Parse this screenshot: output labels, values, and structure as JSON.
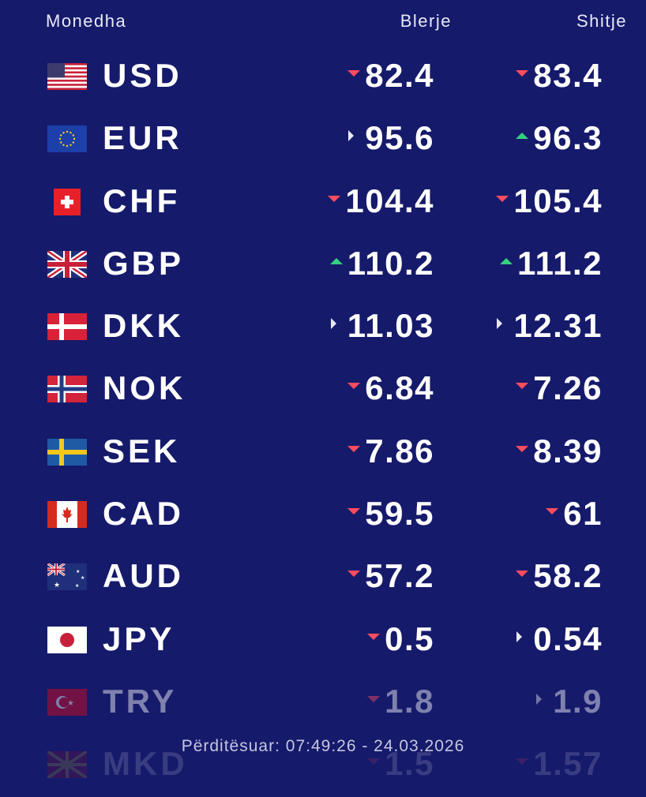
{
  "header": {
    "currency": "Monedha",
    "buy": "Blerje",
    "sell": "Shitje"
  },
  "rates": [
    {
      "code": "USD",
      "flag": "us-flag-icon",
      "buy": "82.4",
      "buy_trend": "down",
      "sell": "83.4",
      "sell_trend": "down"
    },
    {
      "code": "EUR",
      "flag": "eu-flag-icon",
      "buy": "95.6",
      "buy_trend": "flat",
      "sell": "96.3",
      "sell_trend": "up"
    },
    {
      "code": "CHF",
      "flag": "ch-flag-icon",
      "buy": "104.4",
      "buy_trend": "down",
      "sell": "105.4",
      "sell_trend": "down"
    },
    {
      "code": "GBP",
      "flag": "gb-flag-icon",
      "buy": "110.2",
      "buy_trend": "up",
      "sell": "111.2",
      "sell_trend": "up"
    },
    {
      "code": "DKK",
      "flag": "dk-flag-icon",
      "buy": "11.03",
      "buy_trend": "flat",
      "sell": "12.31",
      "sell_trend": "flat"
    },
    {
      "code": "NOK",
      "flag": "no-flag-icon",
      "buy": "6.84",
      "buy_trend": "down",
      "sell": "7.26",
      "sell_trend": "down"
    },
    {
      "code": "SEK",
      "flag": "se-flag-icon",
      "buy": "7.86",
      "buy_trend": "down",
      "sell": "8.39",
      "sell_trend": "down"
    },
    {
      "code": "CAD",
      "flag": "ca-flag-icon",
      "buy": "59.5",
      "buy_trend": "down",
      "sell": "61",
      "sell_trend": "down"
    },
    {
      "code": "AUD",
      "flag": "au-flag-icon",
      "buy": "57.2",
      "buy_trend": "down",
      "sell": "58.2",
      "sell_trend": "down"
    },
    {
      "code": "JPY",
      "flag": "jp-flag-icon",
      "buy": "0.5",
      "buy_trend": "down",
      "sell": "0.54",
      "sell_trend": "flat"
    },
    {
      "code": "TRY",
      "flag": "tr-flag-icon",
      "buy": "1.8",
      "buy_trend": "down",
      "sell": "1.9",
      "sell_trend": "flat"
    },
    {
      "code": "MKD",
      "flag": "mk-flag-icon",
      "buy": "1.5",
      "buy_trend": "down",
      "sell": "1.57",
      "sell_trend": "down"
    }
  ],
  "footer": {
    "updated": "Përditësuar: 07:49:26 - 24.03.2026"
  },
  "colors": {
    "background": "#161a6b",
    "down": "#ff4d5e",
    "up": "#35d07f",
    "flat": "#e6e7f3"
  }
}
